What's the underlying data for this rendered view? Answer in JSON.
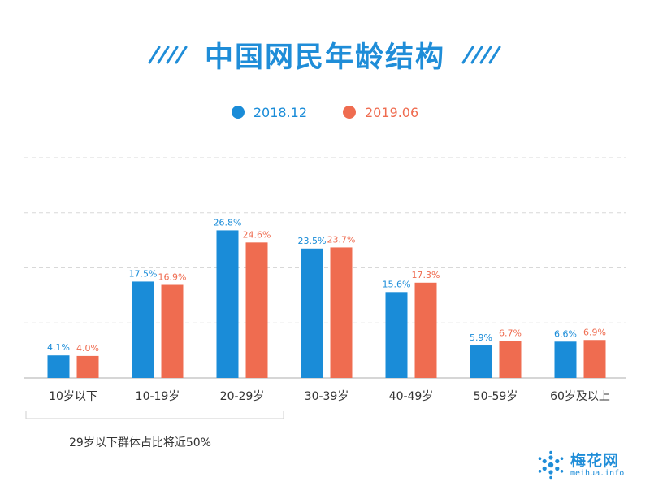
{
  "colors": {
    "series1": "#1a8cd8",
    "series2": "#ef6c50",
    "grid": "#d8d8d8"
  },
  "legend": {
    "items": [
      {
        "label": "2018.12",
        "color": "#1a8cd8"
      },
      {
        "label": "2019.06",
        "color": "#ef6c50"
      }
    ]
  },
  "annotation": "29岁以下群体占比将近50%",
  "logo": {
    "name": "梅花网",
    "domain": "meihua.info",
    "icon": "snowflake-logo-icon"
  },
  "chart_data": {
    "type": "bar",
    "title": "中国网民年龄结构",
    "categories": [
      "10岁以下",
      "10-19岁",
      "20-29岁",
      "30-39岁",
      "40-49岁",
      "50-59岁",
      "60岁及以上"
    ],
    "series": [
      {
        "name": "2018.12",
        "values": [
          4.1,
          17.5,
          26.8,
          23.5,
          15.6,
          5.9,
          6.6
        ],
        "labels": [
          "4.1%",
          "17.5%",
          "26.8%",
          "23.5%",
          "15.6%",
          "5.9%",
          "6.6%"
        ]
      },
      {
        "name": "2019.06",
        "values": [
          4.0,
          16.9,
          24.6,
          23.7,
          17.3,
          6.7,
          6.9
        ],
        "labels": [
          "4.0%",
          "16.9%",
          "24.6%",
          "23.7%",
          "17.3%",
          "6.7%",
          "6.9%"
        ]
      }
    ],
    "ylim": [
      0,
      40
    ],
    "grid": true,
    "legend_position": "top-center",
    "xlabel": "",
    "ylabel": ""
  }
}
